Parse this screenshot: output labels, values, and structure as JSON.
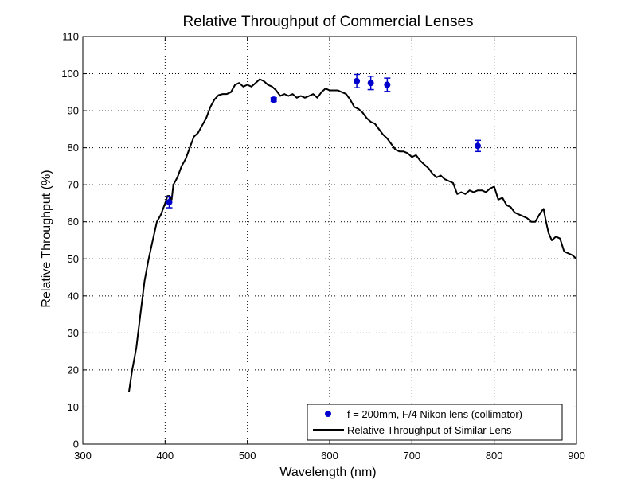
{
  "colors": {
    "background": "#ffffff",
    "axes": "#000000",
    "grid": "#000000",
    "marker_series": "#0000cc",
    "line_series": "#000000"
  },
  "chart_data": {
    "type": "line",
    "title": "Relative Throughput of Commercial Lenses",
    "xlabel": "Wavelength (nm)",
    "ylabel": "Relative Throughput (%)",
    "xlim": [
      300,
      900
    ],
    "ylim": [
      0,
      110
    ],
    "xticks": [
      300,
      400,
      500,
      600,
      700,
      800,
      900
    ],
    "yticks": [
      0,
      10,
      20,
      30,
      40,
      50,
      60,
      70,
      80,
      90,
      100,
      110
    ],
    "grid": true,
    "grid_style": "dotted",
    "legend_position": "bottom-right",
    "series": [
      {
        "name": "f = 200mm, F/4 Nikon lens (collimator)",
        "kind": "scatter_errorbar",
        "color": "#0000cc",
        "x": [
          405,
          532,
          633,
          650,
          670,
          780
        ],
        "y": [
          65.3,
          93.0,
          98.0,
          97.5,
          97.0,
          80.5
        ],
        "err": [
          1.5,
          0.5,
          1.8,
          1.8,
          1.8,
          1.5
        ]
      },
      {
        "name": "Relative Throughput of Similar Lens",
        "kind": "line",
        "color": "#000000",
        "x": [
          356,
          360,
          365,
          370,
          375,
          380,
          385,
          390,
          395,
          400,
          403,
          405,
          408,
          410,
          415,
          420,
          425,
          430,
          435,
          440,
          445,
          450,
          455,
          460,
          465,
          470,
          475,
          480,
          485,
          490,
          495,
          500,
          505,
          510,
          515,
          520,
          525,
          530,
          535,
          540,
          545,
          550,
          555,
          560,
          565,
          570,
          575,
          580,
          585,
          590,
          595,
          600,
          605,
          610,
          615,
          620,
          625,
          630,
          635,
          640,
          645,
          650,
          655,
          660,
          665,
          670,
          675,
          680,
          685,
          690,
          695,
          700,
          705,
          710,
          715,
          720,
          725,
          730,
          735,
          740,
          745,
          750,
          755,
          760,
          765,
          770,
          775,
          780,
          785,
          790,
          795,
          800,
          805,
          810,
          815,
          820,
          825,
          830,
          835,
          840,
          845,
          850,
          855,
          858,
          860,
          863,
          866,
          870,
          875,
          880,
          885,
          890,
          895,
          900
        ],
        "y": [
          14,
          20,
          26,
          35,
          44,
          50,
          55,
          60,
          62,
          65,
          67,
          67,
          66,
          70,
          72,
          75,
          77,
          80,
          83,
          84,
          86,
          88,
          91,
          93,
          94.2,
          94.5,
          94.5,
          95,
          97,
          97.5,
          96.5,
          97,
          96.5,
          97.5,
          98.5,
          98,
          97,
          96.5,
          95.5,
          94,
          94.5,
          94,
          94.5,
          93.5,
          94,
          93.5,
          94,
          94.5,
          93.5,
          95,
          96,
          95.5,
          95.5,
          95.5,
          95,
          94.5,
          93,
          91,
          90.5,
          89.5,
          88,
          87,
          86.5,
          85,
          83.5,
          82.5,
          81,
          79.5,
          79,
          79,
          78.5,
          77.5,
          78,
          76.5,
          75.5,
          74.5,
          73,
          72,
          72.5,
          71.5,
          71,
          70.5,
          67.5,
          68,
          67.5,
          68.5,
          68,
          68.5,
          68.5,
          68,
          69,
          69.5,
          66,
          66.5,
          64.5,
          64,
          62.5,
          62,
          61.5,
          61,
          60,
          60,
          62,
          63,
          63.5,
          60,
          57,
          55,
          56,
          55.5,
          52,
          51.5,
          51,
          50
        ]
      }
    ]
  }
}
